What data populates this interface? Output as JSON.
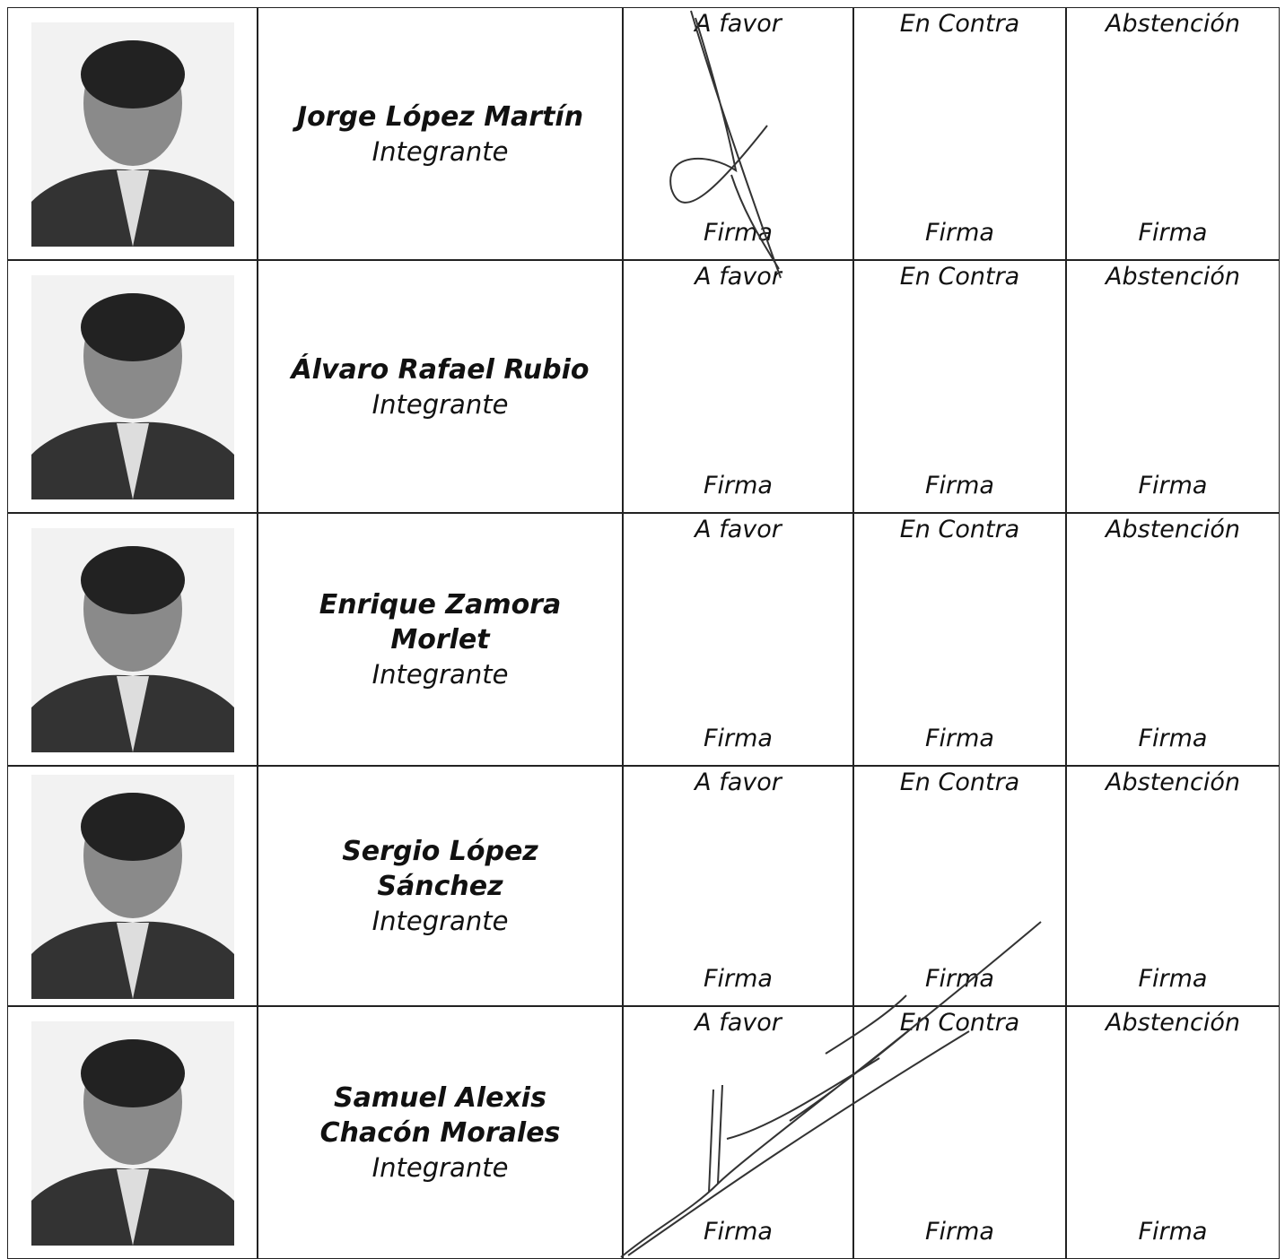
{
  "vote_columns": [
    {
      "label": "A favor",
      "sign": "Firma"
    },
    {
      "label": "En Contra",
      "sign": "Firma"
    },
    {
      "label": "Abstención",
      "sign": "Firma"
    }
  ],
  "members": [
    {
      "name_lines": [
        "Jorge López Martín"
      ],
      "role": "Integrante"
    },
    {
      "name_lines": [
        "Álvaro Rafael Rubio"
      ],
      "role": "Integrante"
    },
    {
      "name_lines": [
        "Enrique Zamora",
        "Morlet"
      ],
      "role": "Integrante"
    },
    {
      "name_lines": [
        "Sergio López",
        "Sánchez"
      ],
      "role": "Integrante"
    },
    {
      "name_lines": [
        "Samuel Alexis",
        "Chacón Morales"
      ],
      "role": "Integrante"
    }
  ]
}
